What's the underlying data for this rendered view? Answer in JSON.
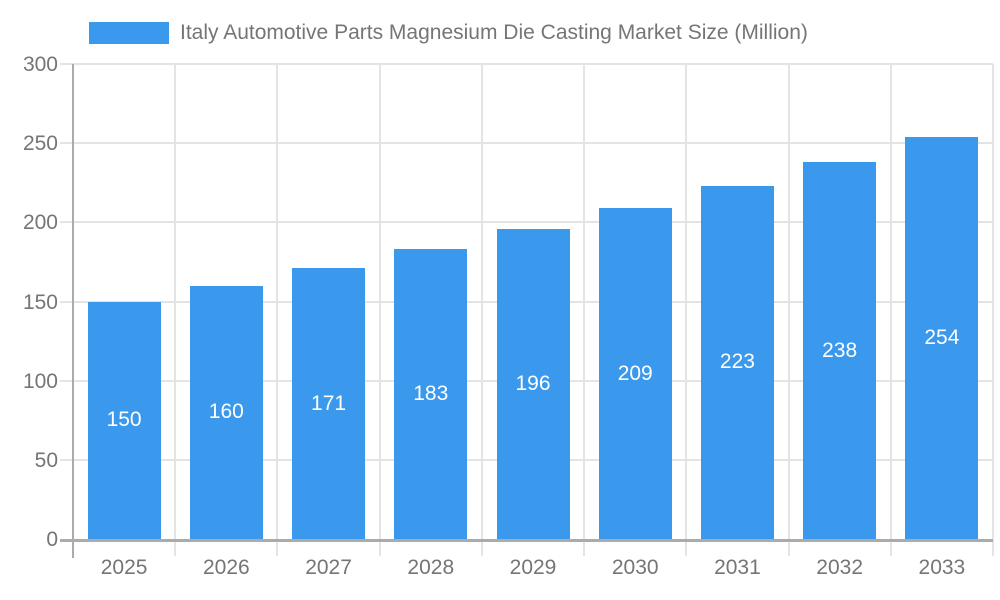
{
  "legend": {
    "label": "Italy Automotive Parts Magnesium Die Casting Market Size (Million)"
  },
  "chart_data": {
    "type": "bar",
    "title": "Italy Automotive Parts Magnesium Die Casting Market Size (Million)",
    "categories": [
      "2025",
      "2026",
      "2027",
      "2028",
      "2029",
      "2030",
      "2031",
      "2032",
      "2033"
    ],
    "values": [
      150,
      160,
      171,
      183,
      196,
      209,
      223,
      238,
      254
    ],
    "xlabel": "",
    "ylabel": "",
    "ylim": [
      0,
      300
    ],
    "yticks": [
      0,
      50,
      100,
      150,
      200,
      250,
      300
    ],
    "grid": true,
    "legend_position": "top-left",
    "colors": {
      "bar": "#3a99ec",
      "bar_label_text": "#ffffff",
      "axis_text": "#757575",
      "gridline": "#e4e4e4",
      "axis_line": "#ababab",
      "background": "#ffffff"
    }
  }
}
